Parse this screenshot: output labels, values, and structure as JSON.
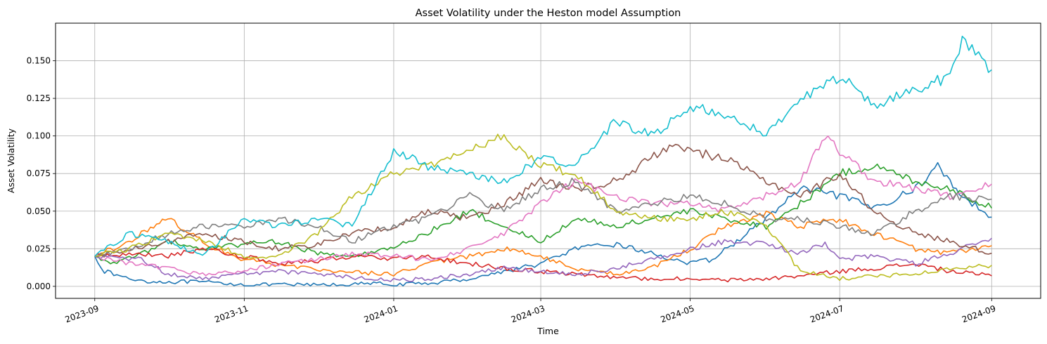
{
  "chart_data": {
    "type": "line",
    "title": "Asset Volatility under the Heston model Assumption",
    "xlabel": "Time",
    "ylabel": "Asset Volatility",
    "grid": true,
    "x_range": [
      "2023-08-16",
      "2024-09-21"
    ],
    "ylim": [
      -0.008,
      0.175
    ],
    "x_ticks": [
      "2023-09-01",
      "2023-11-01",
      "2024-01-01",
      "2024-03-01",
      "2024-05-01",
      "2024-07-01",
      "2024-09-01"
    ],
    "x_tick_labels": [
      "2023-09",
      "2023-11",
      "2024-01",
      "2024-03",
      "2024-05",
      "2024-07",
      "2024-09"
    ],
    "x_tick_rotation": "20 degrees",
    "y_ticks": [
      0.0,
      0.025,
      0.05,
      0.075,
      0.1,
      0.125,
      0.15
    ],
    "y_tick_labels": [
      "0.000",
      "0.025",
      "0.050",
      "0.075",
      "0.100",
      "0.125",
      "0.150"
    ],
    "series": [
      {
        "color": "#1f77b4",
        "points": [
          [
            "2023-09-01",
            0.02
          ],
          [
            "2023-09-05",
            0.01
          ],
          [
            "2023-09-15",
            0.005
          ],
          [
            "2023-09-25",
            0.003
          ],
          [
            "2023-10-10",
            0.003
          ],
          [
            "2023-10-25",
            0.002
          ],
          [
            "2023-11-01",
            0.001
          ],
          [
            "2023-11-20",
            0.001
          ],
          [
            "2023-12-10",
            0.001
          ],
          [
            "2023-12-25",
            0.002
          ],
          [
            "2024-01-01",
            0.001
          ],
          [
            "2024-01-15",
            0.002
          ],
          [
            "2024-02-01",
            0.005
          ],
          [
            "2024-02-15",
            0.01
          ],
          [
            "2024-03-01",
            0.015
          ],
          [
            "2024-03-15",
            0.025
          ],
          [
            "2024-04-01",
            0.028
          ],
          [
            "2024-04-15",
            0.022
          ],
          [
            "2024-05-01",
            0.015
          ],
          [
            "2024-05-10",
            0.018
          ],
          [
            "2024-05-20",
            0.03
          ],
          [
            "2024-06-01",
            0.045
          ],
          [
            "2024-06-15",
            0.065
          ],
          [
            "2024-07-01",
            0.06
          ],
          [
            "2024-07-15",
            0.052
          ],
          [
            "2024-08-01",
            0.065
          ],
          [
            "2024-08-10",
            0.08
          ],
          [
            "2024-08-20",
            0.06
          ],
          [
            "2024-09-01",
            0.046
          ]
        ]
      },
      {
        "color": "#ff7f0e",
        "points": [
          [
            "2023-09-01",
            0.02
          ],
          [
            "2023-09-15",
            0.03
          ],
          [
            "2023-09-25",
            0.04
          ],
          [
            "2023-10-01",
            0.045
          ],
          [
            "2023-10-10",
            0.035
          ],
          [
            "2023-10-20",
            0.025
          ],
          [
            "2023-11-01",
            0.018
          ],
          [
            "2023-11-20",
            0.013
          ],
          [
            "2023-12-10",
            0.01
          ],
          [
            "2024-01-01",
            0.008
          ],
          [
            "2024-01-15",
            0.015
          ],
          [
            "2024-02-01",
            0.02
          ],
          [
            "2024-02-15",
            0.025
          ],
          [
            "2024-03-01",
            0.02
          ],
          [
            "2024-03-15",
            0.012
          ],
          [
            "2024-04-01",
            0.008
          ],
          [
            "2024-04-15",
            0.012
          ],
          [
            "2024-05-01",
            0.025
          ],
          [
            "2024-05-15",
            0.04
          ],
          [
            "2024-06-01",
            0.048
          ],
          [
            "2024-06-15",
            0.04
          ],
          [
            "2024-07-01",
            0.045
          ],
          [
            "2024-07-15",
            0.035
          ],
          [
            "2024-08-01",
            0.025
          ],
          [
            "2024-08-15",
            0.022
          ],
          [
            "2024-09-01",
            0.027
          ]
        ]
      },
      {
        "color": "#2ca02c",
        "points": [
          [
            "2023-09-01",
            0.02
          ],
          [
            "2023-09-10",
            0.015
          ],
          [
            "2023-09-20",
            0.022
          ],
          [
            "2023-10-01",
            0.03
          ],
          [
            "2023-10-15",
            0.025
          ],
          [
            "2023-11-01",
            0.028
          ],
          [
            "2023-11-15",
            0.03
          ],
          [
            "2023-12-01",
            0.022
          ],
          [
            "2023-12-15",
            0.02
          ],
          [
            "2024-01-01",
            0.025
          ],
          [
            "2024-01-20",
            0.04
          ],
          [
            "2024-02-01",
            0.05
          ],
          [
            "2024-02-15",
            0.04
          ],
          [
            "2024-03-01",
            0.03
          ],
          [
            "2024-03-15",
            0.045
          ],
          [
            "2024-04-01",
            0.04
          ],
          [
            "2024-04-15",
            0.045
          ],
          [
            "2024-05-01",
            0.05
          ],
          [
            "2024-05-15",
            0.045
          ],
          [
            "2024-06-01",
            0.04
          ],
          [
            "2024-06-15",
            0.055
          ],
          [
            "2024-07-01",
            0.075
          ],
          [
            "2024-07-15",
            0.08
          ],
          [
            "2024-08-01",
            0.07
          ],
          [
            "2024-08-15",
            0.065
          ],
          [
            "2024-09-01",
            0.052
          ]
        ]
      },
      {
        "color": "#d62728",
        "points": [
          [
            "2023-09-01",
            0.02
          ],
          [
            "2023-09-15",
            0.022
          ],
          [
            "2023-10-01",
            0.02
          ],
          [
            "2023-10-15",
            0.025
          ],
          [
            "2023-11-01",
            0.02
          ],
          [
            "2023-11-15",
            0.015
          ],
          [
            "2023-12-01",
            0.017
          ],
          [
            "2023-12-15",
            0.02
          ],
          [
            "2024-01-01",
            0.018
          ],
          [
            "2024-01-15",
            0.02
          ],
          [
            "2024-02-01",
            0.015
          ],
          [
            "2024-02-15",
            0.012
          ],
          [
            "2024-03-01",
            0.01
          ],
          [
            "2024-03-15",
            0.008
          ],
          [
            "2024-04-01",
            0.006
          ],
          [
            "2024-04-15",
            0.005
          ],
          [
            "2024-05-01",
            0.005
          ],
          [
            "2024-05-15",
            0.004
          ],
          [
            "2024-06-01",
            0.005
          ],
          [
            "2024-06-15",
            0.007
          ],
          [
            "2024-07-01",
            0.01
          ],
          [
            "2024-07-15",
            0.012
          ],
          [
            "2024-08-01",
            0.015
          ],
          [
            "2024-08-15",
            0.01
          ],
          [
            "2024-09-01",
            0.007
          ]
        ]
      },
      {
        "color": "#9467bd",
        "points": [
          [
            "2023-09-01",
            0.02
          ],
          [
            "2023-09-20",
            0.018
          ],
          [
            "2023-10-01",
            0.008
          ],
          [
            "2023-10-15",
            0.005
          ],
          [
            "2023-11-01",
            0.008
          ],
          [
            "2023-11-15",
            0.01
          ],
          [
            "2023-12-01",
            0.008
          ],
          [
            "2023-12-15",
            0.006
          ],
          [
            "2024-01-01",
            0.004
          ],
          [
            "2024-01-15",
            0.005
          ],
          [
            "2024-02-01",
            0.008
          ],
          [
            "2024-02-15",
            0.012
          ],
          [
            "2024-03-01",
            0.01
          ],
          [
            "2024-03-15",
            0.008
          ],
          [
            "2024-04-01",
            0.012
          ],
          [
            "2024-04-15",
            0.018
          ],
          [
            "2024-05-01",
            0.025
          ],
          [
            "2024-05-15",
            0.03
          ],
          [
            "2024-06-01",
            0.028
          ],
          [
            "2024-06-15",
            0.022
          ],
          [
            "2024-06-25",
            0.028
          ],
          [
            "2024-07-01",
            0.018
          ],
          [
            "2024-07-15",
            0.02
          ],
          [
            "2024-08-01",
            0.015
          ],
          [
            "2024-08-15",
            0.022
          ],
          [
            "2024-09-01",
            0.032
          ]
        ]
      },
      {
        "color": "#8c564b",
        "points": [
          [
            "2023-09-01",
            0.02
          ],
          [
            "2023-09-15",
            0.025
          ],
          [
            "2023-10-01",
            0.03
          ],
          [
            "2023-10-15",
            0.035
          ],
          [
            "2023-11-01",
            0.03
          ],
          [
            "2023-11-15",
            0.025
          ],
          [
            "2023-12-01",
            0.028
          ],
          [
            "2023-12-15",
            0.035
          ],
          [
            "2024-01-01",
            0.04
          ],
          [
            "2024-01-15",
            0.05
          ],
          [
            "2024-02-01",
            0.045
          ],
          [
            "2024-02-15",
            0.055
          ],
          [
            "2024-03-01",
            0.07
          ],
          [
            "2024-03-15",
            0.065
          ],
          [
            "2024-04-01",
            0.07
          ],
          [
            "2024-04-15",
            0.085
          ],
          [
            "2024-04-25",
            0.095
          ],
          [
            "2024-05-01",
            0.09
          ],
          [
            "2024-05-15",
            0.085
          ],
          [
            "2024-06-01",
            0.07
          ],
          [
            "2024-06-15",
            0.06
          ],
          [
            "2024-07-01",
            0.075
          ],
          [
            "2024-07-15",
            0.05
          ],
          [
            "2024-08-01",
            0.035
          ],
          [
            "2024-08-15",
            0.03
          ],
          [
            "2024-09-01",
            0.022
          ]
        ]
      },
      {
        "color": "#e377c2",
        "points": [
          [
            "2023-09-01",
            0.02
          ],
          [
            "2023-09-15",
            0.015
          ],
          [
            "2023-10-01",
            0.012
          ],
          [
            "2023-10-15",
            0.008
          ],
          [
            "2023-11-01",
            0.01
          ],
          [
            "2023-11-15",
            0.015
          ],
          [
            "2023-12-01",
            0.018
          ],
          [
            "2023-12-15",
            0.022
          ],
          [
            "2024-01-01",
            0.02
          ],
          [
            "2024-01-15",
            0.018
          ],
          [
            "2024-02-01",
            0.025
          ],
          [
            "2024-02-15",
            0.035
          ],
          [
            "2024-03-01",
            0.055
          ],
          [
            "2024-03-15",
            0.07
          ],
          [
            "2024-04-01",
            0.06
          ],
          [
            "2024-04-15",
            0.055
          ],
          [
            "2024-05-01",
            0.055
          ],
          [
            "2024-05-15",
            0.05
          ],
          [
            "2024-06-01",
            0.06
          ],
          [
            "2024-06-15",
            0.07
          ],
          [
            "2024-06-25",
            0.1
          ],
          [
            "2024-07-01",
            0.09
          ],
          [
            "2024-07-15",
            0.07
          ],
          [
            "2024-08-01",
            0.065
          ],
          [
            "2024-08-15",
            0.06
          ],
          [
            "2024-09-01",
            0.068
          ]
        ]
      },
      {
        "color": "#7f7f7f",
        "points": [
          [
            "2023-09-01",
            0.02
          ],
          [
            "2023-09-15",
            0.025
          ],
          [
            "2023-10-01",
            0.035
          ],
          [
            "2023-10-15",
            0.04
          ],
          [
            "2023-11-01",
            0.04
          ],
          [
            "2023-11-15",
            0.045
          ],
          [
            "2023-12-01",
            0.04
          ],
          [
            "2023-12-15",
            0.03
          ],
          [
            "2024-01-01",
            0.04
          ],
          [
            "2024-01-15",
            0.045
          ],
          [
            "2024-02-01",
            0.06
          ],
          [
            "2024-02-15",
            0.05
          ],
          [
            "2024-03-01",
            0.065
          ],
          [
            "2024-03-15",
            0.07
          ],
          [
            "2024-04-01",
            0.05
          ],
          [
            "2024-04-15",
            0.055
          ],
          [
            "2024-05-01",
            0.06
          ],
          [
            "2024-05-15",
            0.055
          ],
          [
            "2024-06-01",
            0.045
          ],
          [
            "2024-06-15",
            0.045
          ],
          [
            "2024-07-01",
            0.04
          ],
          [
            "2024-07-15",
            0.035
          ],
          [
            "2024-08-01",
            0.05
          ],
          [
            "2024-08-15",
            0.06
          ],
          [
            "2024-09-01",
            0.058
          ]
        ]
      },
      {
        "color": "#bcbd22",
        "points": [
          [
            "2023-09-01",
            0.02
          ],
          [
            "2023-09-15",
            0.025
          ],
          [
            "2023-10-01",
            0.035
          ],
          [
            "2023-10-15",
            0.03
          ],
          [
            "2023-11-01",
            0.02
          ],
          [
            "2023-11-15",
            0.02
          ],
          [
            "2023-12-01",
            0.035
          ],
          [
            "2023-12-15",
            0.06
          ],
          [
            "2024-01-01",
            0.075
          ],
          [
            "2024-01-15",
            0.08
          ],
          [
            "2024-02-01",
            0.09
          ],
          [
            "2024-02-15",
            0.1
          ],
          [
            "2024-03-01",
            0.08
          ],
          [
            "2024-03-15",
            0.075
          ],
          [
            "2024-04-01",
            0.05
          ],
          [
            "2024-04-15",
            0.045
          ],
          [
            "2024-05-01",
            0.045
          ],
          [
            "2024-05-15",
            0.05
          ],
          [
            "2024-06-01",
            0.04
          ],
          [
            "2024-06-15",
            0.01
          ],
          [
            "2024-07-01",
            0.005
          ],
          [
            "2024-07-15",
            0.007
          ],
          [
            "2024-08-01",
            0.008
          ],
          [
            "2024-08-15",
            0.012
          ],
          [
            "2024-09-01",
            0.014
          ]
        ]
      },
      {
        "color": "#17becf",
        "points": [
          [
            "2023-09-01",
            0.02
          ],
          [
            "2023-09-15",
            0.035
          ],
          [
            "2023-10-01",
            0.03
          ],
          [
            "2023-10-15",
            0.02
          ],
          [
            "2023-11-01",
            0.045
          ],
          [
            "2023-11-15",
            0.04
          ],
          [
            "2023-12-01",
            0.045
          ],
          [
            "2023-12-15",
            0.04
          ],
          [
            "2024-01-01",
            0.09
          ],
          [
            "2024-01-15",
            0.08
          ],
          [
            "2024-02-01",
            0.075
          ],
          [
            "2024-02-15",
            0.07
          ],
          [
            "2024-03-01",
            0.085
          ],
          [
            "2024-03-15",
            0.08
          ],
          [
            "2024-04-01",
            0.11
          ],
          [
            "2024-04-15",
            0.1
          ],
          [
            "2024-05-01",
            0.12
          ],
          [
            "2024-05-15",
            0.115
          ],
          [
            "2024-06-01",
            0.1
          ],
          [
            "2024-06-15",
            0.125
          ],
          [
            "2024-07-01",
            0.14
          ],
          [
            "2024-07-15",
            0.12
          ],
          [
            "2024-08-01",
            0.13
          ],
          [
            "2024-08-15",
            0.14
          ],
          [
            "2024-08-20",
            0.165
          ],
          [
            "2024-09-01",
            0.144
          ]
        ]
      }
    ]
  }
}
